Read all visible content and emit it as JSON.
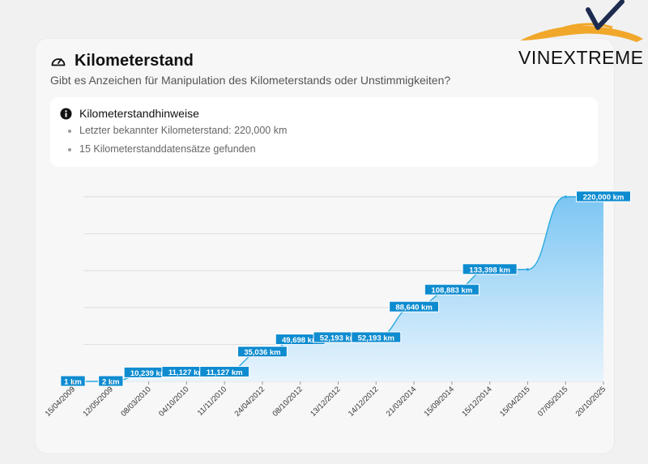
{
  "brand": {
    "name": "VINEXTREME"
  },
  "card": {
    "icon": "gauge-icon",
    "title": "Kilometerstand",
    "subtitle": "Gibt es Anzeichen für Manipulation des Kilometerstands oder Unstimmigkeiten?"
  },
  "notes": {
    "icon": "info-icon",
    "title": "Kilometerstandhinweise",
    "items": [
      "Letzter bekannter Kilometerstand: 220,000 km",
      "15 Kilometerstanddatensätze gefunden"
    ]
  },
  "colors": {
    "line": "#29a9e0",
    "label_bg": "#0f8cd0",
    "fill_top": "#7cc6f3",
    "fill_bottom": "#e8f4fd"
  },
  "chart_data": {
    "type": "area",
    "x": [
      "15/04/2009",
      "12/05/2009",
      "08/03/2010",
      "04/10/2010",
      "11/11/2010",
      "24/04/2012",
      "08/10/2012",
      "13/12/2012",
      "14/12/2012",
      "21/03/2014",
      "15/09/2014",
      "15/12/2014",
      "15/04/2015",
      "07/05/2015",
      "20/10/2025"
    ],
    "values": [
      1,
      2,
      10239,
      11127,
      11127,
      35036,
      49698,
      52193,
      52193,
      88640,
      108883,
      133398,
      133398,
      220000,
      220000
    ],
    "point_labels": [
      "1 km",
      "2 km",
      "10,239 km",
      "11,127 km",
      "11,127 km",
      "35,036 km",
      "49,698 km",
      "52,193 km",
      "52,193 km",
      "88,640 km",
      "108,883 km",
      "133,398 km",
      "",
      "",
      "220,000 km"
    ],
    "grid": true,
    "xlabel": "",
    "ylabel": ""
  }
}
